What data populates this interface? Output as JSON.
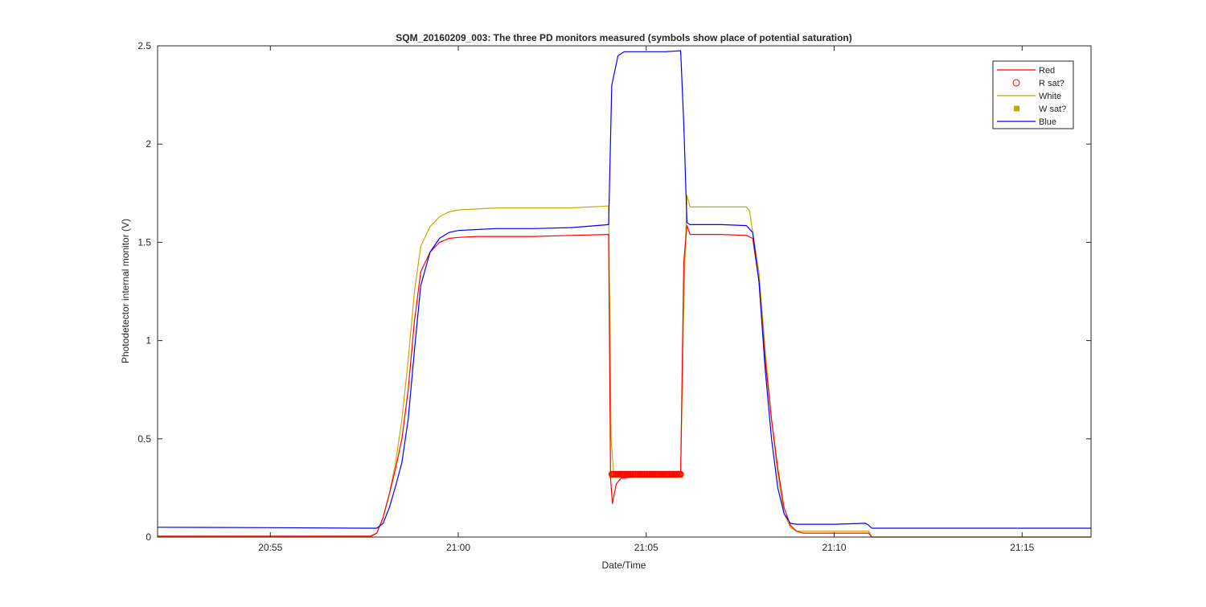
{
  "chart_data": {
    "type": "line",
    "title": "SQM_20160209_003: The three PD monitors measured (symbols show place of potential saturation)",
    "xlabel": "Date/Time",
    "ylabel": "Photodetector internal monitor (V)",
    "x_unit": "time (HH:MM)",
    "xlim": [
      "20:52:00",
      "21:16:50"
    ],
    "ylim": [
      0,
      2.5
    ],
    "x_ticks": [
      "20:55",
      "21:00",
      "21:05",
      "21:10",
      "21:15"
    ],
    "y_ticks": [
      "0",
      "0.5",
      "1",
      "1.5",
      "2",
      "2.5"
    ],
    "grid": false,
    "legend_position": "top-right",
    "series": [
      {
        "name": "Red",
        "style": "line",
        "color": "#ff0000",
        "x": [
          "20:52:00",
          "20:57:40",
          "20:57:50",
          "20:58:00",
          "20:58:10",
          "20:58:20",
          "20:58:30",
          "20:58:40",
          "20:58:50",
          "20:59:00",
          "20:59:15",
          "20:59:30",
          "20:59:45",
          "21:00:00",
          "21:00:30",
          "21:01:00",
          "21:02:00",
          "21:03:00",
          "21:04:00",
          "21:04:03",
          "21:04:06",
          "21:04:12",
          "21:04:20",
          "21:04:40",
          "21:05:00",
          "21:05:30",
          "21:05:50",
          "21:05:55",
          "21:06:00",
          "21:06:05",
          "21:06:10",
          "21:06:20",
          "21:07:00",
          "21:07:40",
          "21:07:50",
          "21:08:00",
          "21:08:10",
          "21:08:20",
          "21:08:30",
          "21:08:40",
          "21:08:50",
          "21:09:00",
          "21:09:10",
          "21:09:20",
          "21:10:00",
          "21:10:50",
          "21:10:55",
          "21:11:00",
          "21:16:50"
        ],
        "y": [
          0.005,
          0.005,
          0.02,
          0.1,
          0.22,
          0.35,
          0.5,
          0.75,
          1.1,
          1.35,
          1.45,
          1.5,
          1.52,
          1.525,
          1.53,
          1.53,
          1.53,
          1.535,
          1.54,
          0.3,
          0.17,
          0.27,
          0.3,
          0.305,
          0.305,
          0.305,
          0.305,
          0.33,
          1.4,
          1.585,
          1.54,
          1.54,
          1.54,
          1.535,
          1.52,
          1.3,
          0.9,
          0.6,
          0.35,
          0.15,
          0.06,
          0.03,
          0.02,
          0.02,
          0.02,
          0.02,
          0.02,
          0.0,
          0.0
        ]
      },
      {
        "name": "R sat?",
        "style": "marker",
        "marker": "circle",
        "color": "#ff0000",
        "x_range": [
          "21:04:05",
          "21:05:55"
        ],
        "y": 0.32
      },
      {
        "name": "White",
        "style": "line",
        "color": "#c8a800",
        "x": [
          "20:52:00",
          "20:57:40",
          "20:57:50",
          "20:58:00",
          "20:58:10",
          "20:58:20",
          "20:58:30",
          "20:58:40",
          "20:58:50",
          "20:59:00",
          "20:59:15",
          "20:59:30",
          "20:59:45",
          "21:00:00",
          "21:00:30",
          "21:01:00",
          "21:02:00",
          "21:03:00",
          "21:04:00",
          "21:04:04",
          "21:04:08",
          "21:05:00",
          "21:05:55",
          "21:06:00",
          "21:06:05",
          "21:06:10",
          "21:06:20",
          "21:07:00",
          "21:07:40",
          "21:07:45",
          "21:07:50",
          "21:08:00",
          "21:08:10",
          "21:08:20",
          "21:08:30",
          "21:08:40",
          "21:08:50",
          "21:09:00",
          "21:09:10",
          "21:09:20",
          "21:10:00",
          "21:10:50",
          "21:10:55",
          "21:11:00",
          "21:16:50"
        ],
        "y": [
          0.0,
          0.0,
          0.02,
          0.1,
          0.22,
          0.38,
          0.6,
          0.9,
          1.25,
          1.48,
          1.58,
          1.63,
          1.655,
          1.665,
          1.67,
          1.675,
          1.675,
          1.675,
          1.685,
          0.5,
          0.32,
          0.32,
          0.32,
          1.2,
          1.74,
          1.68,
          1.68,
          1.68,
          1.68,
          1.66,
          1.55,
          1.35,
          0.95,
          0.6,
          0.32,
          0.12,
          0.05,
          0.03,
          0.03,
          0.03,
          0.03,
          0.03,
          0.03,
          0.0,
          0.0
        ]
      },
      {
        "name": "W sat?",
        "style": "marker",
        "marker": "square",
        "color": "#c8a800",
        "x_range": [
          "21:04:05",
          "21:05:55"
        ],
        "y": 0.315
      },
      {
        "name": "Blue",
        "style": "line",
        "color": "#0000ff",
        "x": [
          "20:52:00",
          "20:55:00",
          "20:57:30",
          "20:57:50",
          "20:58:00",
          "20:58:10",
          "20:58:20",
          "20:58:30",
          "20:58:40",
          "20:58:50",
          "20:59:00",
          "20:59:15",
          "20:59:30",
          "20:59:45",
          "21:00:00",
          "21:00:30",
          "21:01:00",
          "21:02:00",
          "21:03:00",
          "21:04:00",
          "21:04:05",
          "21:04:15",
          "21:04:25",
          "21:04:40",
          "21:05:00",
          "21:05:30",
          "21:05:55",
          "21:06:00",
          "21:06:05",
          "21:06:10",
          "21:07:00",
          "21:07:40",
          "21:07:50",
          "21:08:00",
          "21:08:10",
          "21:08:20",
          "21:08:30",
          "21:08:40",
          "21:08:50",
          "21:09:00",
          "21:09:10",
          "21:09:20",
          "21:10:00",
          "21:10:50",
          "21:10:55",
          "21:11:00",
          "21:16:50"
        ],
        "y": [
          0.05,
          0.048,
          0.045,
          0.045,
          0.07,
          0.15,
          0.26,
          0.38,
          0.6,
          0.95,
          1.28,
          1.45,
          1.52,
          1.55,
          1.56,
          1.565,
          1.57,
          1.57,
          1.575,
          1.59,
          2.3,
          2.45,
          2.47,
          2.47,
          2.47,
          2.47,
          2.475,
          2.1,
          1.6,
          1.59,
          1.59,
          1.585,
          1.55,
          1.3,
          0.85,
          0.5,
          0.25,
          0.12,
          0.07,
          0.065,
          0.065,
          0.065,
          0.065,
          0.07,
          0.06,
          0.045,
          0.045
        ]
      }
    ]
  }
}
